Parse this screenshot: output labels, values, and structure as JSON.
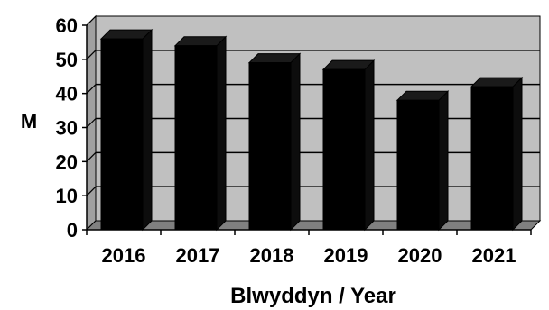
{
  "chart_data": {
    "type": "bar",
    "categories": [
      "2016",
      "2017",
      "2018",
      "2019",
      "2020",
      "2021"
    ],
    "values": [
      56,
      54,
      49,
      47,
      38,
      42
    ],
    "xlabel": "Blwyddyn / Year",
    "ylabel": "M",
    "ylim": [
      0,
      60
    ],
    "yticks": [
      0,
      10,
      20,
      30,
      40,
      50,
      60
    ],
    "grid": true,
    "three_d": true,
    "colors": {
      "bar_front": "#000000",
      "bar_top": "#1a1a1a",
      "bar_side": "#0d0d0d",
      "plot_background": "#c0c0c0",
      "floor": "#808080",
      "side_wall": "#a0a0a0",
      "gridline": "#000000"
    }
  }
}
